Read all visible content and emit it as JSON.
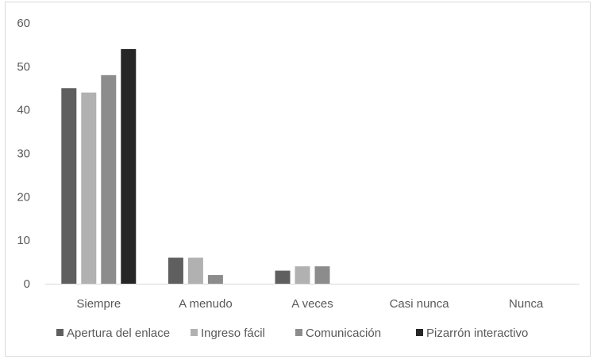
{
  "chart_data": {
    "type": "bar",
    "title": "",
    "xlabel": "",
    "ylabel": "",
    "categories": [
      "Siempre",
      "A menudo",
      "A veces",
      "Casi nunca",
      "Nunca"
    ],
    "series": [
      {
        "name": "Apertura del enlace",
        "values": [
          45,
          6,
          3,
          0,
          0
        ],
        "color": "#5f5f5f"
      },
      {
        "name": "Ingreso fácil",
        "values": [
          44,
          6,
          4,
          0,
          0
        ],
        "color": "#b1b1b1"
      },
      {
        "name": "Comunicación",
        "values": [
          48,
          2,
          4,
          0,
          0
        ],
        "color": "#8c8c8c"
      },
      {
        "name": "Pizarrón interactivo",
        "values": [
          54,
          0,
          0,
          0,
          0
        ],
        "color": "#262626"
      }
    ],
    "ylim": [
      0,
      60
    ],
    "yticks": [
      0,
      10,
      20,
      30,
      40,
      50,
      60
    ],
    "grid": false,
    "legend_position": "bottom",
    "axis_color": "#d9d9d9",
    "text_color": "#595959"
  }
}
